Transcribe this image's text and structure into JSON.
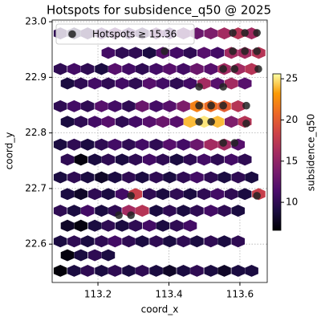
{
  "chart_data": {
    "type": "hexbin",
    "title": "Hotspots for subsidence_q50 @ 2025",
    "x_label": "coord_x",
    "y_label": "coord_y",
    "xlim": [
      113.071,
      113.677
    ],
    "ylim": [
      22.531,
      23.003
    ],
    "xticks": [
      113.2,
      113.4,
      113.6
    ],
    "yticks": [
      22.6,
      22.7,
      22.8,
      22.9,
      {
        "value": 23,
        "label": "23.0"
      }
    ],
    "grid": true,
    "colorbar": {
      "label": "subsidence_q50",
      "lim": [
        6.6,
        25.6
      ],
      "ticks": [
        10,
        15,
        20,
        25
      ],
      "colormap": "inferno"
    },
    "rows": [
      {
        "y": 22.979,
        "x": [
          113.094,
          113.133,
          113.171,
          113.21,
          113.248,
          113.287,
          113.325,
          113.364,
          113.402,
          113.441,
          113.479,
          113.518,
          113.556,
          113.595,
          113.633
        ],
        "values": [
          10,
          9,
          10,
          11,
          12,
          11,
          10,
          12,
          11,
          12,
          13,
          14,
          16,
          17,
          16
        ]
      },
      {
        "y": 22.944,
        "x": [
          113.229,
          113.268,
          113.306,
          113.345,
          113.383,
          113.422,
          113.46,
          113.499,
          113.537,
          113.576,
          113.614,
          113.653
        ],
        "values": [
          11,
          10,
          10,
          9,
          12,
          11,
          10,
          12,
          11,
          16,
          16,
          17
        ]
      },
      {
        "y": 22.915,
        "x": [
          113.094,
          113.133,
          113.171,
          113.21,
          113.248,
          113.287,
          113.325,
          113.364,
          113.402,
          113.441,
          113.479,
          113.518,
          113.556,
          113.595,
          113.633
        ],
        "values": [
          10,
          11,
          10,
          9,
          12,
          11,
          10,
          11,
          12,
          11,
          13,
          12,
          16,
          16,
          17
        ]
      },
      {
        "y": 22.889,
        "x": [
          113.114,
          113.152,
          113.191,
          113.229,
          113.268,
          113.306,
          113.345,
          113.383,
          113.422,
          113.46,
          113.499,
          113.537,
          113.576,
          113.614
        ],
        "values": [
          9,
          10,
          11,
          10,
          11,
          10,
          12,
          11,
          10,
          11,
          16,
          12,
          16,
          12
        ]
      },
      {
        "y": 22.848,
        "x": [
          113.094,
          113.133,
          113.171,
          113.21,
          113.248,
          113.287,
          113.325,
          113.364,
          113.402,
          113.441,
          113.479,
          113.518,
          113.556,
          113.595
        ],
        "values": [
          10,
          11,
          10,
          12,
          11,
          10,
          13,
          11,
          12,
          14,
          22,
          21,
          20,
          17
        ]
      },
      {
        "y": 22.82,
        "x": [
          113.114,
          113.152,
          113.191,
          113.229,
          113.268,
          113.306,
          113.345,
          113.383,
          113.422,
          113.46,
          113.499,
          113.537,
          113.576,
          113.614
        ],
        "values": [
          9,
          10,
          11,
          12,
          10,
          11,
          12,
          13,
          12,
          24,
          25,
          24,
          14,
          17
        ]
      },
      {
        "y": 22.779,
        "x": [
          113.094,
          113.133,
          113.171,
          113.21,
          113.248,
          113.287,
          113.325,
          113.364,
          113.402,
          113.441,
          113.479,
          113.518,
          113.556,
          113.595
        ],
        "values": [
          9,
          10,
          9,
          10,
          11,
          10,
          11,
          10,
          12,
          11,
          13,
          16,
          16,
          12
        ]
      },
      {
        "y": 22.752,
        "x": [
          113.114,
          113.152,
          113.191,
          113.229,
          113.268,
          113.306,
          113.345,
          113.383,
          113.422,
          113.46,
          113.499,
          113.537,
          113.576,
          113.614
        ],
        "values": [
          10,
          7,
          9,
          10,
          9,
          10,
          11,
          10,
          9,
          10,
          11,
          10,
          11,
          10
        ]
      },
      {
        "y": 22.72,
        "x": [
          113.094,
          113.133,
          113.171,
          113.21,
          113.248,
          113.287,
          113.325,
          113.364,
          113.402,
          113.441,
          113.479,
          113.518,
          113.556,
          113.595,
          113.633
        ],
        "values": [
          9,
          10,
          9,
          8,
          9,
          10,
          9,
          10,
          9,
          10,
          11,
          10,
          9,
          10,
          9
        ]
      },
      {
        "y": 22.69,
        "x": [
          113.114,
          113.152,
          113.191,
          113.229,
          113.268,
          113.306,
          113.345,
          113.383,
          113.422,
          113.46,
          113.499,
          113.537,
          113.576,
          113.614,
          113.653
        ],
        "values": [
          9,
          8,
          10,
          9,
          11,
          18,
          10,
          9,
          10,
          9,
          10,
          11,
          10,
          9,
          18
        ]
      },
      {
        "y": 22.66,
        "x": [
          113.094,
          113.133,
          113.171,
          113.21,
          113.248,
          113.287,
          113.325,
          113.364,
          113.402,
          113.441,
          113.479,
          113.518,
          113.556,
          113.595
        ],
        "values": [
          10,
          9,
          11,
          9,
          10,
          16,
          17,
          9,
          10,
          9,
          10,
          11,
          10,
          9
        ]
      },
      {
        "y": 22.633,
        "x": [
          113.114,
          113.152,
          113.191,
          113.229,
          113.268,
          113.306,
          113.345,
          113.383,
          113.422,
          113.46
        ],
        "values": [
          8,
          7,
          9,
          10,
          9,
          10,
          11,
          9,
          10,
          11
        ]
      },
      {
        "y": 22.605,
        "x": [
          113.094,
          113.133,
          113.171,
          113.21,
          113.248,
          113.287,
          113.325,
          113.364,
          113.402,
          113.441,
          113.479,
          113.518,
          113.556,
          113.595
        ],
        "values": [
          9,
          10,
          9,
          10,
          11,
          10,
          9,
          10,
          9,
          10,
          9,
          10,
          9,
          10
        ]
      },
      {
        "y": 22.58,
        "x": [
          113.114,
          113.152,
          113.191,
          113.229
        ],
        "values": [
          7,
          9,
          10,
          9
        ]
      },
      {
        "y": 22.552,
        "x": [
          113.094,
          113.133,
          113.171,
          113.21,
          113.248,
          113.287,
          113.325,
          113.364,
          113.402,
          113.441,
          113.479,
          113.518,
          113.556,
          113.595,
          113.633
        ],
        "values": [
          6.8,
          9,
          10,
          9,
          10,
          9,
          10,
          9,
          8,
          9,
          10,
          9,
          8,
          9,
          9
        ]
      }
    ],
    "hotspots": {
      "name": "Hotspots ≥ 15.36",
      "color": "#222222",
      "x": [
        113.58,
        113.614,
        113.648,
        113.388,
        113.58,
        113.614,
        113.648,
        113.553,
        113.585,
        113.652,
        113.485,
        113.553,
        113.485,
        113.519,
        113.553,
        113.618,
        113.485,
        113.519,
        113.618,
        113.553,
        113.585,
        113.293,
        113.259,
        113.293,
        113.648
      ],
      "y": [
        22.98,
        22.98,
        22.98,
        22.947,
        22.947,
        22.947,
        22.947,
        22.915,
        22.915,
        22.915,
        22.883,
        22.883,
        22.849,
        22.849,
        22.849,
        22.849,
        22.82,
        22.82,
        22.817,
        22.782,
        22.782,
        22.687,
        22.652,
        22.652,
        22.687
      ]
    },
    "legend": "upper left"
  }
}
